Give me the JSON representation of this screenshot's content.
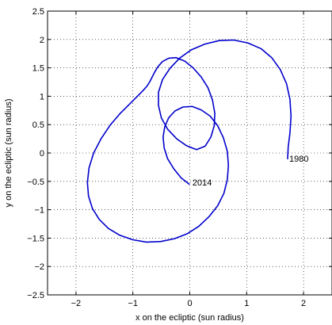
{
  "chart_data": {
    "type": "line",
    "title": "",
    "xlabel": "x on the ecliptic (sun radius)",
    "ylabel": "y on the ecliptic (sun radius)",
    "xlim": [
      -2.5,
      2.5
    ],
    "ylim": [
      -2.5,
      2.5
    ],
    "x_ticks": [
      -2,
      -1,
      0,
      1,
      2
    ],
    "x_tick_labels": [
      "−2",
      "−1",
      "0",
      "1",
      "2"
    ],
    "y_ticks": [
      -2.5,
      -2,
      -1.5,
      -1,
      -0.5,
      0,
      0.5,
      1,
      1.5,
      2,
      2.5
    ],
    "y_tick_labels": [
      "−2.5",
      "−2",
      "−1.5",
      "−1",
      "−0.5",
      "0",
      "0.5",
      "1",
      "1.5",
      "2",
      "2.5"
    ],
    "grid": true,
    "grid_style": "dotted",
    "series": [
      {
        "color": "#0000cc",
        "x": [
          1.72,
          1.73,
          1.76,
          1.78,
          1.76,
          1.7,
          1.59,
          1.44,
          1.25,
          1.02,
          0.77,
          0.52,
          0.27,
          0.03,
          -0.18,
          -0.35,
          -0.48,
          -0.55,
          -0.55,
          -0.5,
          -0.39,
          -0.23,
          -0.06,
          0.12,
          0.27,
          0.37,
          0.43,
          0.44,
          0.4,
          0.32,
          0.2,
          0.06,
          -0.09,
          -0.24,
          -0.37,
          -0.48,
          -0.56,
          -0.62,
          -0.66,
          -0.7,
          -0.75,
          -0.82,
          -0.92,
          -1.06,
          -1.23,
          -1.4,
          -1.56,
          -1.69,
          -1.77,
          -1.8,
          -1.78,
          -1.71,
          -1.59,
          -1.43,
          -1.23,
          -1.0,
          -0.76,
          -0.51,
          -0.27,
          -0.04,
          0.16,
          0.34,
          0.49,
          0.6,
          0.66,
          0.68,
          0.66,
          0.59,
          0.49,
          0.36,
          0.2,
          0.04,
          -0.12,
          -0.26,
          -0.37,
          -0.44,
          -0.47,
          -0.45,
          -0.39,
          -0.28,
          -0.15,
          -0.01
        ],
        "y": [
          -0.1,
          0.1,
          0.35,
          0.65,
          0.95,
          1.22,
          1.47,
          1.68,
          1.84,
          1.94,
          1.99,
          1.98,
          1.92,
          1.82,
          1.67,
          1.49,
          1.29,
          1.07,
          0.84,
          0.62,
          0.42,
          0.25,
          0.13,
          0.06,
          0.12,
          0.28,
          0.48,
          0.7,
          0.93,
          1.15,
          1.34,
          1.5,
          1.62,
          1.68,
          1.67,
          1.61,
          1.52,
          1.42,
          1.34,
          1.26,
          1.18,
          1.1,
          1.0,
          0.86,
          0.69,
          0.49,
          0.25,
          0.0,
          -0.26,
          -0.52,
          -0.76,
          -0.98,
          -1.17,
          -1.33,
          -1.45,
          -1.53,
          -1.57,
          -1.56,
          -1.51,
          -1.42,
          -1.29,
          -1.12,
          -0.93,
          -0.71,
          -0.47,
          -0.22,
          0.03,
          0.27,
          0.48,
          0.65,
          0.76,
          0.82,
          0.81,
          0.74,
          0.62,
          0.46,
          0.28,
          0.09,
          -0.1,
          -0.28,
          -0.44,
          -0.55
        ]
      }
    ],
    "annotations": [
      {
        "text": "1980",
        "x": 1.72,
        "y": -0.1
      },
      {
        "text": "2014",
        "x": 0.02,
        "y": -0.52
      }
    ]
  }
}
